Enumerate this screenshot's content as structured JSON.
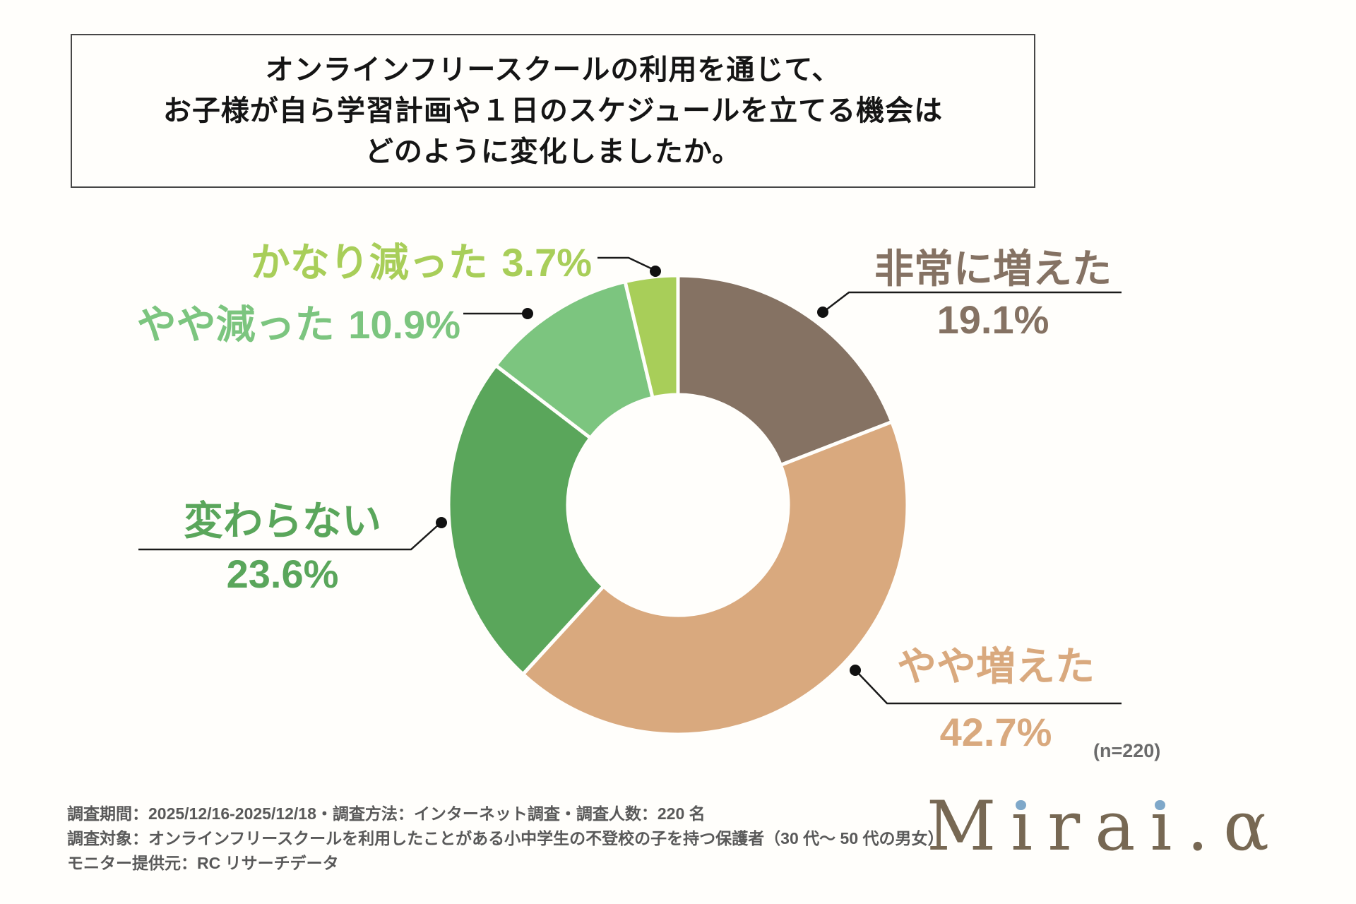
{
  "title": {
    "lines": [
      "オンラインフリースクールの利用を通じて、",
      "お子様が自ら学習計画や１日のスケジュールを立てる機会は",
      "どのように変化しましたか。"
    ]
  },
  "chart_data": {
    "type": "pie",
    "variant": "donut",
    "title": "オンラインフリースクールの利用を通じて、お子様が自ら学習計画や１日のスケジュールを立てる機会はどのように変化しましたか。",
    "unit": "%",
    "n": 220,
    "start_angle": "top",
    "direction": "clockwise",
    "inner_radius_ratio": 0.48,
    "gap_color": "#FFFEFB",
    "slices": [
      {
        "label": "非常に増えた",
        "value": 19.1,
        "pct_label": "19.1%",
        "color": "#857263"
      },
      {
        "label": "やや増えた",
        "value": 42.7,
        "pct_label": "42.7%",
        "color": "#D9A97E"
      },
      {
        "label": "変わらない",
        "value": 23.6,
        "pct_label": "23.6%",
        "color": "#5AA65B"
      },
      {
        "label": "やや減った",
        "value": 10.9,
        "pct_label": "10.9%",
        "color": "#7CC57F"
      },
      {
        "label": "かなり減った",
        "value": 3.7,
        "pct_label": "3.7%",
        "color": "#A8CE59"
      }
    ]
  },
  "sample_label": "(n=220)",
  "footnote": {
    "lines": [
      "調査期間：2025/12/16-2025/12/18・調査方法：インターネット調査・調査人数：220 名",
      "調査対象：オンラインフリースクールを利用したことがある小中学生の不登校の子を持つ保護者（30 代〜 50 代の男女）",
      "モニター提供元：RC リサーチデータ"
    ]
  },
  "logo": {
    "text": "Mirai.α",
    "color": "#776853",
    "dot_color": "#7FA8C9"
  }
}
